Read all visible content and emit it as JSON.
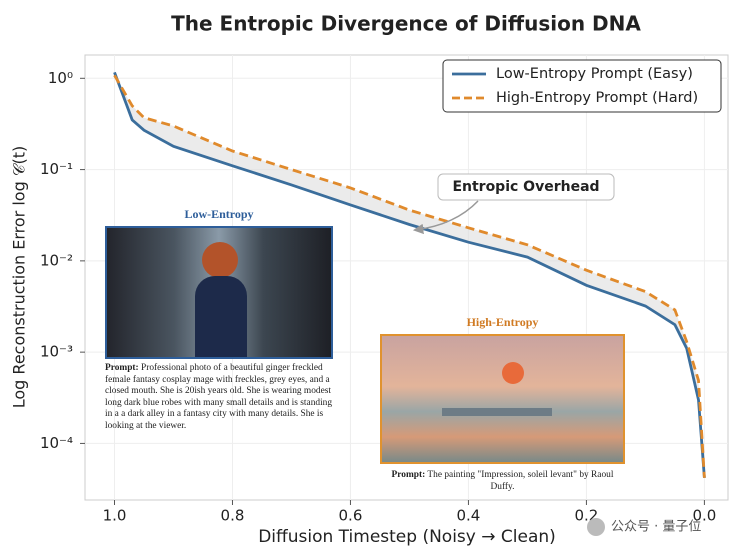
{
  "chart_data": {
    "type": "line",
    "title": "The Entropic Divergence of Diffusion DNA",
    "x_label": "Diffusion Timestep (Noisy → Clean)",
    "y_label": "Log Reconstruction Error log 𝒞(t)",
    "x": [
      1.0,
      0.97,
      0.95,
      0.9,
      0.8,
      0.7,
      0.6,
      0.5,
      0.4,
      0.3,
      0.2,
      0.1,
      0.05,
      0.03,
      0.01,
      0.0
    ],
    "series": [
      {
        "name": "Low-Entropy Prompt (Easy)",
        "color": "#3b6e9c",
        "line_style": "solid",
        "values": [
          1.16,
          0.35,
          0.27,
          0.18,
          0.11,
          0.068,
          0.041,
          0.025,
          0.016,
          0.011,
          0.0054,
          0.0032,
          0.002,
          0.0011,
          0.0003,
          4.2e-05
        ]
      },
      {
        "name": "High-Entropy Prompt (Hard)",
        "color": "#e08a2c",
        "line_style": "dashed",
        "values": [
          1.08,
          0.5,
          0.37,
          0.3,
          0.16,
          0.1,
          0.063,
          0.036,
          0.023,
          0.015,
          0.0079,
          0.0046,
          0.0029,
          0.0013,
          0.00049,
          4.2e-05
        ]
      }
    ],
    "xlim": [
      1.05,
      -0.04
    ],
    "xticks": [
      {
        "value": 1,
        "label": "1.0"
      },
      0.8,
      0.6,
      0.4,
      0.2,
      {
        "value": 0,
        "label": "0.0"
      }
    ],
    "ylim": [
      2.4e-05,
      1.8
    ],
    "yticks": [
      {
        "value": 1,
        "label": "10⁰"
      },
      {
        "value": 0.1,
        "label": "10⁻¹"
      },
      {
        "value": 0.01,
        "label": "10⁻²"
      },
      {
        "value": 0.001,
        "label": "10⁻³"
      },
      {
        "value": 0.0001,
        "label": "10⁻⁴"
      }
    ],
    "ylog": true,
    "grid": true,
    "legend": "upper right",
    "annotation": "Entropic Overhead"
  },
  "insets": [
    {
      "title": "Low-Entropy",
      "prompt_label": "Prompt:",
      "prompt": "Professional photo of a beautiful ginger freckled female fantasy cosplay mage with freckles, grey eyes, and a closed mouth. She is 20ish years old. She is wearing modest long dark blue robes with many small details and is standing in a a dark alley in a fantasy city with many details. She is looking at the viewer."
    },
    {
      "title": "High-Entropy",
      "prompt_label": "Prompt:",
      "prompt": "The painting \"Impression, soleil levant\" by Raoul Duffy."
    }
  ],
  "watermark": "公众号 · 量子位"
}
